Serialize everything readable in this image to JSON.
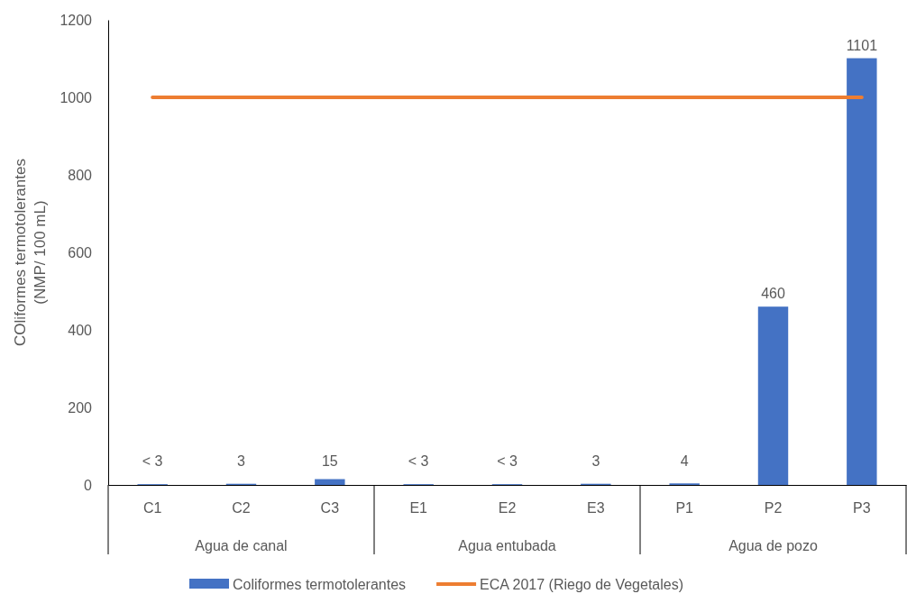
{
  "chart_data": {
    "type": "bar",
    "ylabel": "COliformes termotolerantes\n(NMP/ 100 mL)",
    "categories": [
      "C1",
      "C2",
      "C3",
      "E1",
      "E2",
      "E3",
      "P1",
      "P2",
      "P3"
    ],
    "series": [
      {
        "name": "Coliformes termotolerantes",
        "color": "#4472c4",
        "values": [
          2,
          3,
          15,
          2,
          2,
          3,
          4,
          460,
          1101
        ],
        "value_labels": [
          "< 3",
          "3",
          "15",
          "< 3",
          "< 3",
          "3",
          "4",
          "460",
          "1101"
        ]
      },
      {
        "name": "ECA 2017 (Riego de Vegetales)",
        "type": "line",
        "color": "#ed7d31",
        "values": [
          1000,
          1000,
          1000,
          1000,
          1000,
          1000,
          1000,
          1000,
          1000
        ]
      }
    ],
    "annotations": [
      "Agua de canal",
      "Agua entubada",
      "Agua de pozo"
    ],
    "ylim": [
      0,
      1200
    ],
    "yticks": [
      0,
      200,
      400,
      600,
      800,
      1000,
      1200
    ],
    "grid": false,
    "legend": "bottom"
  }
}
